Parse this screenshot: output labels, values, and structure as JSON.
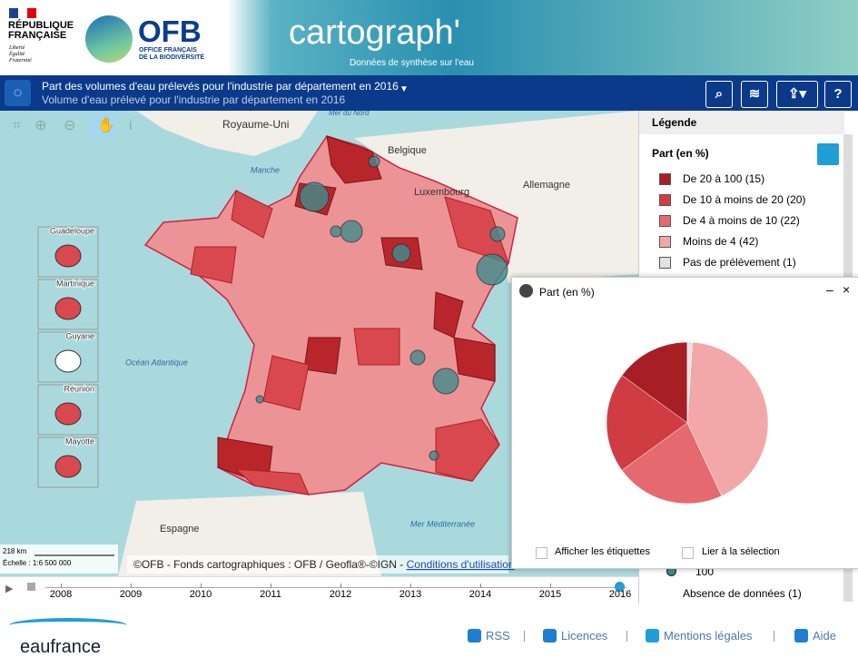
{
  "header": {
    "republic": [
      "RÉPUBLIQUE",
      "FRANÇAISE"
    ],
    "motto": [
      "Liberté",
      "Égalité",
      "Fraternité"
    ],
    "ofb": "OFB",
    "ofb_sub": [
      "OFFICE FRANÇAIS",
      "DE LA BIODIVERSITÉ"
    ],
    "app": "cartograph'",
    "app_sub": "Données de synthèse sur l'eau"
  },
  "titlebar": {
    "title": "Part des volumes d'eau prélevés pour l'industrie par département en 2016",
    "subtitle": "Volume d'eau prélevé pour l'industrie par département en 2016"
  },
  "map": {
    "labels": [
      "Royaume-Uni",
      "Mer du Nord",
      "Belgique",
      "Manche",
      "Luxembourg",
      "Allemagne",
      "Océan Atlantique",
      "Espagne",
      "Mer Méditerranée"
    ],
    "insets": [
      "Guadeloupe",
      "Martinique",
      "Guyane",
      "Réunion",
      "Mayotte"
    ],
    "scale": "218 km",
    "scale_ratio": "Échelle : 1:6 500 000",
    "attribution": "©OFB - Fonds cartographiques : OFB / Geofla®-©IGN - ",
    "link": "Conditions d'utilisation"
  },
  "timeline": {
    "years": [
      2008,
      2009,
      2010,
      2011,
      2012,
      2013,
      2014,
      2015,
      2016
    ]
  },
  "legend": {
    "title": "Légende",
    "section": "Part (en %)",
    "items": [
      "De 20 à 100 (15)",
      "De 10 à moins de 20 (20)",
      "De 4 à moins de 10 (22)",
      "Moins de 4 (42)",
      "Pas de prélèvement (1)"
    ],
    "circle_label": "100",
    "no_data": "Absence de données (1)"
  },
  "chart_data": {
    "type": "pie",
    "title": "Part (en %)",
    "values": [
      15,
      20,
      22,
      42,
      1
    ],
    "colors": [
      "#a71e24",
      "#cf3d43",
      "#e46a6f",
      "#f2a7a9",
      "#e2e2e2"
    ]
  },
  "pie_options": [
    "Afficher les étiquettes",
    "Lier à la sélection"
  ],
  "footer": {
    "brand": "eaufrance",
    "links": [
      "RSS",
      "Licences",
      "Mentions légales",
      "Aide"
    ]
  }
}
